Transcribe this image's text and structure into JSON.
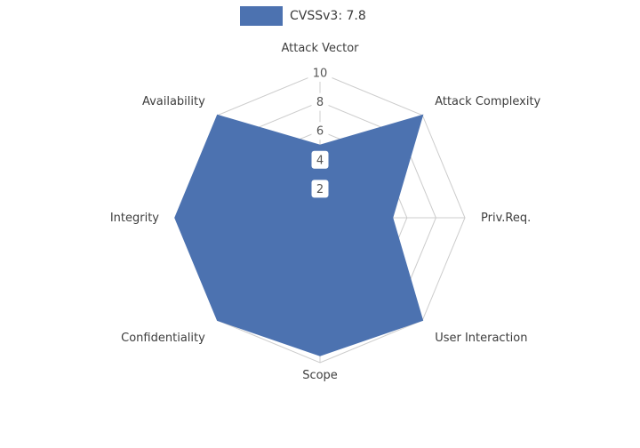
{
  "legend": {
    "label": "CVSSv3: 7.8",
    "swatch_color": "#4C72B0"
  },
  "chart_data": {
    "type": "radar",
    "title": "CVSSv3: 7.8",
    "axes": [
      "Attack Vector",
      "Attack Complexity",
      "Priv.Req.",
      "User Interaction",
      "Scope",
      "Confidentiality",
      "Integrity",
      "Availability"
    ],
    "series": [
      {
        "name": "CVSSv3: 7.8",
        "values": [
          5,
          10,
          5,
          10,
          9.5,
          10,
          10,
          10
        ],
        "color": "#4C72B0"
      }
    ],
    "radial_ticks": [
      2,
      4,
      6,
      8,
      10
    ],
    "rlim": [
      0,
      10
    ],
    "grid": true,
    "grid_color": "#cccccc",
    "tick_box_color": "#ffffff",
    "legend_position": "top-center"
  }
}
